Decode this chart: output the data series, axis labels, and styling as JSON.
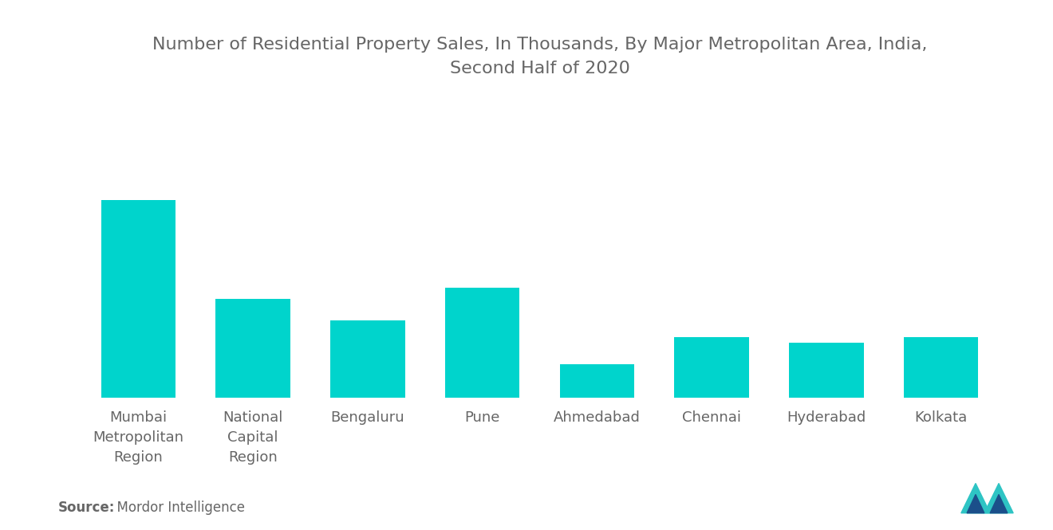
{
  "title": "Number of Residential Property Sales, In Thousands, By Major Metropolitan Area, India,\nSecond Half of 2020",
  "categories": [
    "Mumbai\nMetropolitan\nRegion",
    "National\nCapital\nRegion",
    "Bengaluru",
    "Pune",
    "Ahmedabad",
    "Chennai",
    "Hyderabad",
    "Kolkata"
  ],
  "values": [
    36,
    18,
    14,
    20,
    6,
    11,
    10,
    11
  ],
  "bar_color": "#00D4CC",
  "background_color": "#FFFFFF",
  "title_color": "#666666",
  "label_color": "#666666",
  "source_bold": "Source:",
  "source_normal": "  Mordor Intelligence",
  "title_fontsize": 16,
  "label_fontsize": 13,
  "source_fontsize": 12,
  "ylim": [
    0,
    55
  ]
}
